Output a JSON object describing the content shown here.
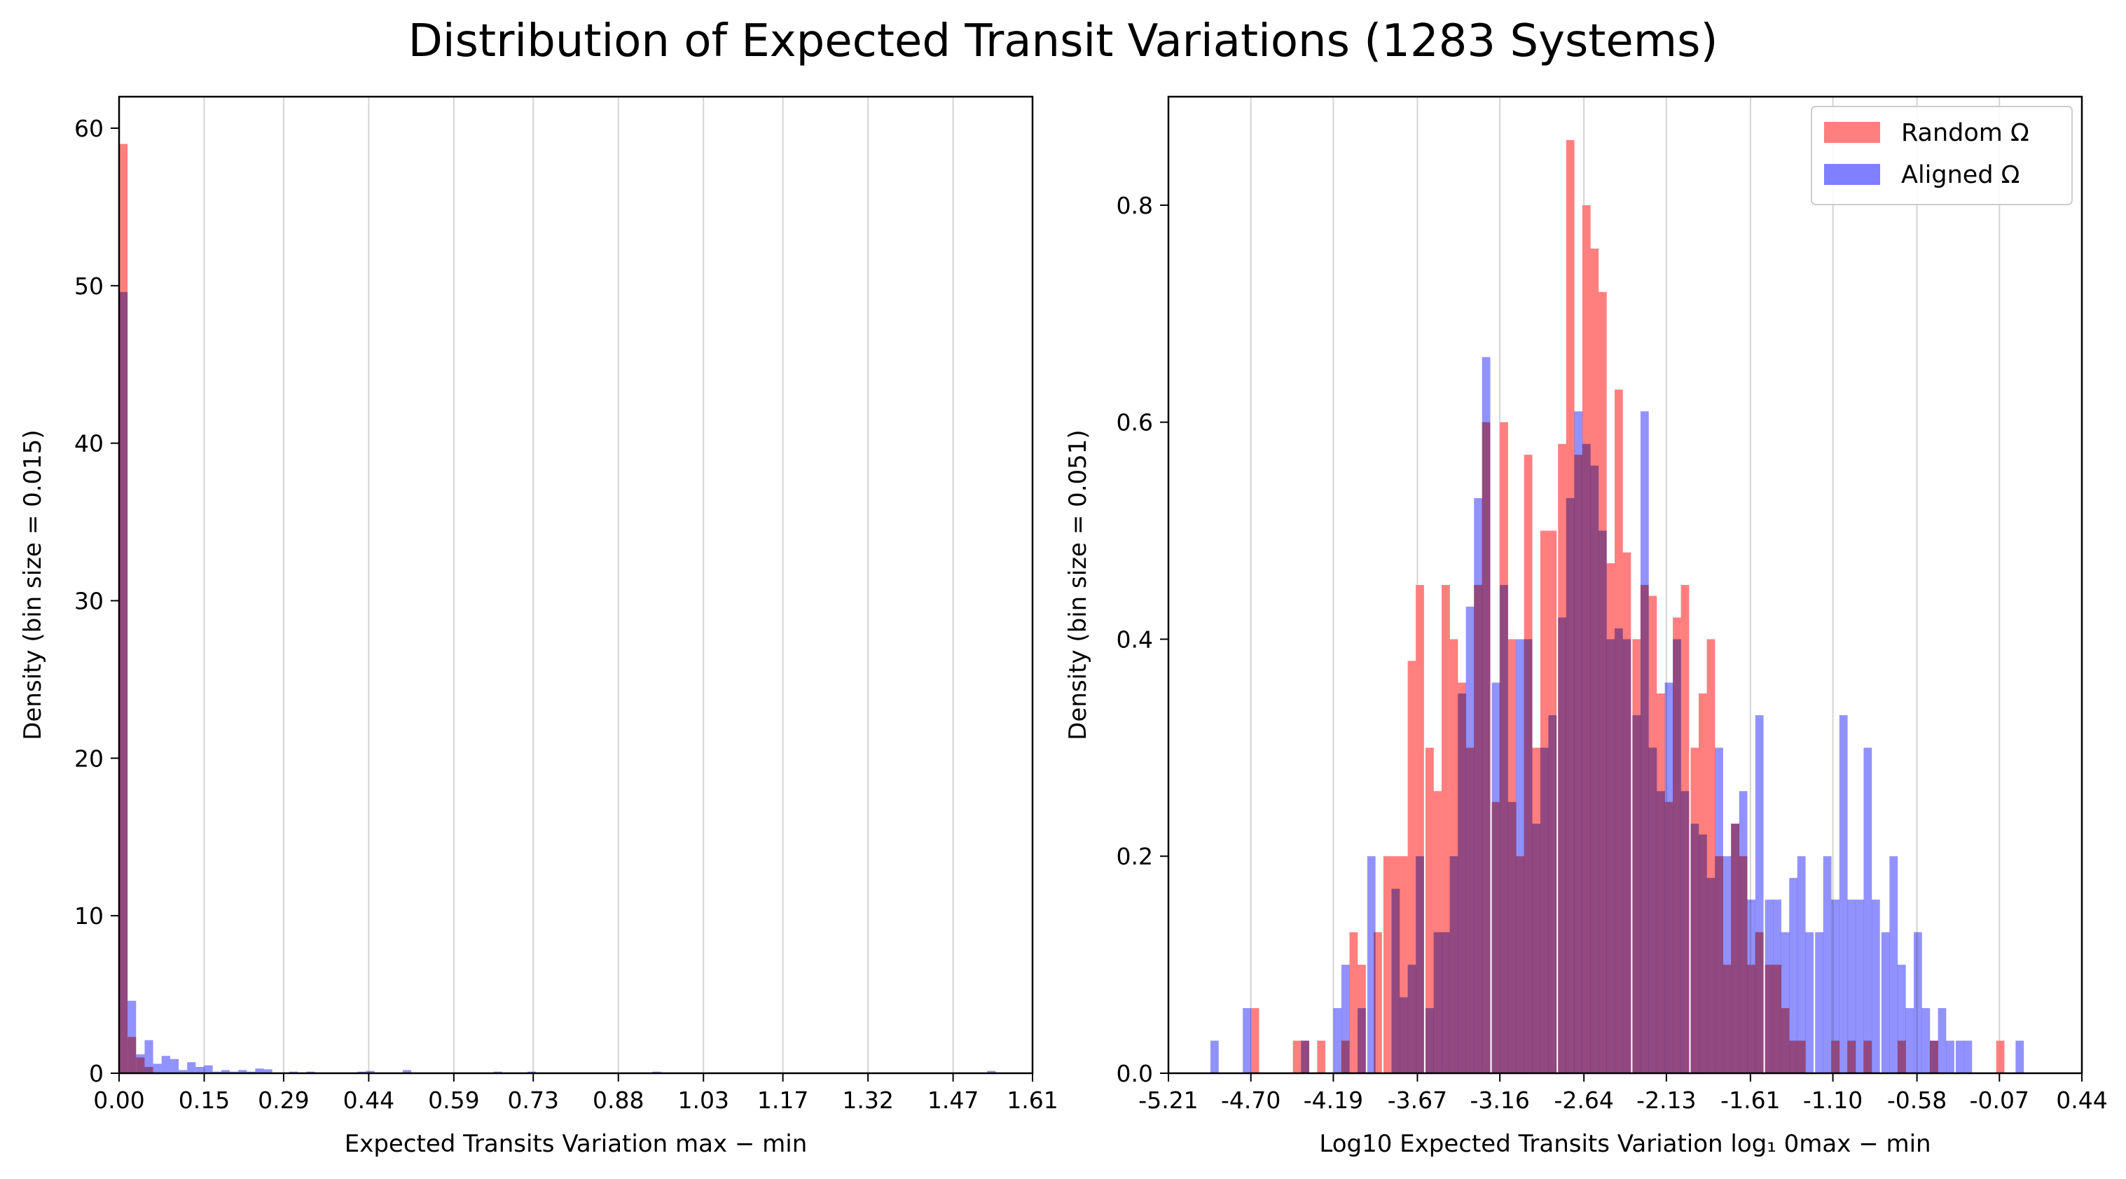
{
  "title": "Distribution of Expected Transit Variations (1283 Systems)",
  "colors": {
    "random": "#ff7f7f",
    "aligned": "#7f7fff",
    "grid": "#d3d3d3"
  },
  "chart_data": [
    {
      "type": "bar",
      "name": "linear-histogram",
      "xlabel": "Expected Transits Variation max − min",
      "ylabel": "Density (bin size = 0.015)",
      "xlim": [
        0.0,
        1.61
      ],
      "ylim": [
        0,
        62
      ],
      "grid": "vertical",
      "bin_width": 0.015,
      "x_ticks": [
        "0.00",
        "0.15",
        "0.29",
        "0.44",
        "0.59",
        "0.73",
        "0.88",
        "1.03",
        "1.17",
        "1.32",
        "1.47",
        "1.61"
      ],
      "y_ticks": [
        "0",
        "10",
        "20",
        "30",
        "40",
        "50",
        "60"
      ],
      "series": [
        {
          "key": "random",
          "color": "#ff7f7f",
          "bins": [
            [
              0.0,
              59.0
            ],
            [
              0.015,
              2.3
            ],
            [
              0.03,
              1.0
            ],
            [
              0.045,
              0.4
            ]
          ]
        },
        {
          "key": "aligned",
          "color": "#7f7fff",
          "bins": [
            [
              0.0,
              49.6
            ],
            [
              0.015,
              4.6
            ],
            [
              0.03,
              1.2
            ],
            [
              0.045,
              2.1
            ],
            [
              0.06,
              0.6
            ],
            [
              0.075,
              1.1
            ],
            [
              0.09,
              0.9
            ],
            [
              0.105,
              0.2
            ],
            [
              0.12,
              0.7
            ],
            [
              0.135,
              0.4
            ],
            [
              0.15,
              0.5
            ],
            [
              0.165,
              0.1
            ],
            [
              0.18,
              0.2
            ],
            [
              0.195,
              0.1
            ],
            [
              0.21,
              0.2
            ],
            [
              0.225,
              0.1
            ],
            [
              0.24,
              0.3
            ],
            [
              0.255,
              0.25
            ],
            [
              0.3,
              0.1
            ],
            [
              0.33,
              0.1
            ],
            [
              0.42,
              0.1
            ],
            [
              0.435,
              0.15
            ],
            [
              0.5,
              0.2
            ],
            [
              0.66,
              0.1
            ],
            [
              0.72,
              0.1
            ],
            [
              0.94,
              0.1
            ],
            [
              1.53,
              0.15
            ]
          ]
        }
      ]
    },
    {
      "type": "bar",
      "name": "log-histogram",
      "xlabel": "Log10 Expected Transits Variation log₁ 0max − min",
      "ylabel": "Density (bin size = 0.051)",
      "xlim": [
        -5.21,
        0.44
      ],
      "ylim": [
        0,
        0.9
      ],
      "grid": "vertical",
      "bin_width": 0.051,
      "x_ticks": [
        "-5.21",
        "-4.70",
        "-4.19",
        "-3.67",
        "-3.16",
        "-2.64",
        "-2.13",
        "-1.61",
        "-1.10",
        "-0.58",
        "-0.07",
        "0.44"
      ],
      "y_ticks": [
        "0.0",
        "0.2",
        "0.4",
        "0.6",
        "0.8"
      ],
      "legend": {
        "position": "top-right",
        "entries": [
          {
            "key": "random",
            "label": "Random Ω"
          },
          {
            "key": "aligned",
            "label": "Aligned Ω"
          }
        ]
      },
      "series": [
        {
          "key": "random",
          "color": "#ff7f7f",
          "bins": [
            [
              -4.7,
              0.06
            ],
            [
              -4.44,
              0.03
            ],
            [
              -4.39,
              0.03
            ],
            [
              -4.29,
              0.03
            ],
            [
              -4.14,
              0.03
            ],
            [
              -4.09,
              0.13
            ],
            [
              -4.04,
              0.1
            ],
            [
              -3.94,
              0.13
            ],
            [
              -3.88,
              0.2
            ],
            [
              -3.83,
              0.2
            ],
            [
              -3.78,
              0.2
            ],
            [
              -3.73,
              0.38
            ],
            [
              -3.68,
              0.45
            ],
            [
              -3.62,
              0.3
            ],
            [
              -3.57,
              0.26
            ],
            [
              -3.52,
              0.45
            ],
            [
              -3.47,
              0.4
            ],
            [
              -3.42,
              0.36
            ],
            [
              -3.37,
              0.3
            ],
            [
              -3.32,
              0.45
            ],
            [
              -3.27,
              0.6
            ],
            [
              -3.21,
              0.25
            ],
            [
              -3.16,
              0.6
            ],
            [
              -3.11,
              0.4
            ],
            [
              -3.06,
              0.2
            ],
            [
              -3.01,
              0.57
            ],
            [
              -2.96,
              0.3
            ],
            [
              -2.91,
              0.5
            ],
            [
              -2.86,
              0.5
            ],
            [
              -2.8,
              0.58
            ],
            [
              -2.75,
              0.86
            ],
            [
              -2.7,
              0.57
            ],
            [
              -2.65,
              0.8
            ],
            [
              -2.6,
              0.76
            ],
            [
              -2.55,
              0.72
            ],
            [
              -2.5,
              0.47
            ],
            [
              -2.45,
              0.63
            ],
            [
              -2.4,
              0.48
            ],
            [
              -2.34,
              0.4
            ],
            [
              -2.29,
              0.45
            ],
            [
              -2.24,
              0.44
            ],
            [
              -2.19,
              0.35
            ],
            [
              -2.14,
              0.25
            ],
            [
              -2.09,
              0.42
            ],
            [
              -2.04,
              0.45
            ],
            [
              -1.98,
              0.3
            ],
            [
              -1.93,
              0.35
            ],
            [
              -1.88,
              0.4
            ],
            [
              -1.83,
              0.2
            ],
            [
              -1.78,
              0.1
            ],
            [
              -1.73,
              0.23
            ],
            [
              -1.68,
              0.2
            ],
            [
              -1.63,
              0.1
            ],
            [
              -1.58,
              0.13
            ],
            [
              -1.52,
              0.1
            ],
            [
              -1.47,
              0.1
            ],
            [
              -1.42,
              0.06
            ],
            [
              -1.37,
              0.03
            ],
            [
              -1.32,
              0.03
            ],
            [
              -1.11,
              0.03
            ],
            [
              -1.01,
              0.03
            ],
            [
              -0.91,
              0.03
            ],
            [
              -0.7,
              0.03
            ],
            [
              -0.5,
              0.03
            ],
            [
              -0.09,
              0.03
            ]
          ]
        },
        {
          "key": "aligned",
          "color": "#7f7fff",
          "bins": [
            [
              -4.95,
              0.03
            ],
            [
              -4.75,
              0.06
            ],
            [
              -4.39,
              0.03
            ],
            [
              -4.19,
              0.06
            ],
            [
              -4.14,
              0.1
            ],
            [
              -4.04,
              0.06
            ],
            [
              -3.98,
              0.2
            ],
            [
              -3.83,
              0.17
            ],
            [
              -3.78,
              0.07
            ],
            [
              -3.73,
              0.1
            ],
            [
              -3.68,
              0.2
            ],
            [
              -3.62,
              0.06
            ],
            [
              -3.57,
              0.13
            ],
            [
              -3.52,
              0.13
            ],
            [
              -3.47,
              0.2
            ],
            [
              -3.42,
              0.35
            ],
            [
              -3.37,
              0.43
            ],
            [
              -3.32,
              0.53
            ],
            [
              -3.27,
              0.66
            ],
            [
              -3.21,
              0.36
            ],
            [
              -3.16,
              0.45
            ],
            [
              -3.11,
              0.25
            ],
            [
              -3.06,
              0.4
            ],
            [
              -3.01,
              0.4
            ],
            [
              -2.96,
              0.23
            ],
            [
              -2.91,
              0.3
            ],
            [
              -2.86,
              0.33
            ],
            [
              -2.8,
              0.42
            ],
            [
              -2.75,
              0.53
            ],
            [
              -2.7,
              0.61
            ],
            [
              -2.65,
              0.58
            ],
            [
              -2.6,
              0.56
            ],
            [
              -2.55,
              0.5
            ],
            [
              -2.5,
              0.4
            ],
            [
              -2.45,
              0.41
            ],
            [
              -2.4,
              0.4
            ],
            [
              -2.34,
              0.33
            ],
            [
              -2.29,
              0.61
            ],
            [
              -2.24,
              0.3
            ],
            [
              -2.19,
              0.26
            ],
            [
              -2.14,
              0.36
            ],
            [
              -2.09,
              0.4
            ],
            [
              -2.04,
              0.26
            ],
            [
              -1.98,
              0.23
            ],
            [
              -1.93,
              0.22
            ],
            [
              -1.88,
              0.18
            ],
            [
              -1.83,
              0.3
            ],
            [
              -1.78,
              0.2
            ],
            [
              -1.73,
              0.23
            ],
            [
              -1.68,
              0.26
            ],
            [
              -1.63,
              0.16
            ],
            [
              -1.58,
              0.33
            ],
            [
              -1.52,
              0.16
            ],
            [
              -1.47,
              0.16
            ],
            [
              -1.42,
              0.13
            ],
            [
              -1.37,
              0.18
            ],
            [
              -1.32,
              0.2
            ],
            [
              -1.27,
              0.13
            ],
            [
              -1.21,
              0.13
            ],
            [
              -1.16,
              0.2
            ],
            [
              -1.11,
              0.16
            ],
            [
              -1.06,
              0.33
            ],
            [
              -1.01,
              0.16
            ],
            [
              -0.96,
              0.16
            ],
            [
              -0.91,
              0.3
            ],
            [
              -0.86,
              0.16
            ],
            [
              -0.8,
              0.13
            ],
            [
              -0.75,
              0.2
            ],
            [
              -0.7,
              0.1
            ],
            [
              -0.65,
              0.06
            ],
            [
              -0.6,
              0.13
            ],
            [
              -0.55,
              0.06
            ],
            [
              -0.5,
              0.03
            ],
            [
              -0.45,
              0.06
            ],
            [
              -0.4,
              0.03
            ],
            [
              -0.34,
              0.03
            ],
            [
              -0.29,
              0.03
            ],
            [
              0.03,
              0.03
            ]
          ]
        }
      ]
    }
  ]
}
